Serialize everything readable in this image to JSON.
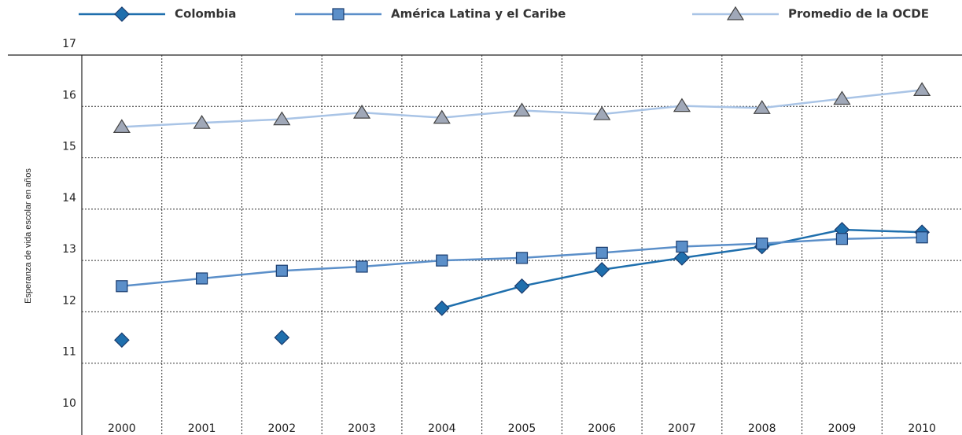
{
  "chart_data": {
    "type": "line",
    "y_label": "Esperanza de vida escolar en años",
    "categories": [
      "2000",
      "2001",
      "2002",
      "2003",
      "2004",
      "2005",
      "2006",
      "2007",
      "2008",
      "2009",
      "2010"
    ],
    "series": [
      {
        "name": "Colombia",
        "color": "#1f6fad",
        "marker": "diamond",
        "values": [
          11.45,
          null,
          11.5,
          null,
          12.07,
          12.5,
          12.82,
          13.05,
          13.27,
          13.6,
          13.55
        ]
      },
      {
        "name": "América Latina y el Caribe",
        "color": "#5b8fc9",
        "marker": "square",
        "values": [
          12.5,
          12.65,
          12.8,
          12.88,
          13.0,
          13.05,
          13.15,
          13.27,
          13.33,
          13.42,
          13.45
        ]
      },
      {
        "name": "Promedio de la OCDE",
        "color": "#a9c4e6",
        "marker": "triangle",
        "values": [
          15.6,
          15.68,
          15.75,
          15.88,
          15.78,
          15.92,
          15.85,
          16.01,
          15.97,
          16.15,
          16.32
        ]
      }
    ],
    "ylim": [
      10,
      17
    ],
    "yticks": [
      10,
      11,
      12,
      13,
      14,
      15,
      16,
      17
    ],
    "grid": true
  }
}
